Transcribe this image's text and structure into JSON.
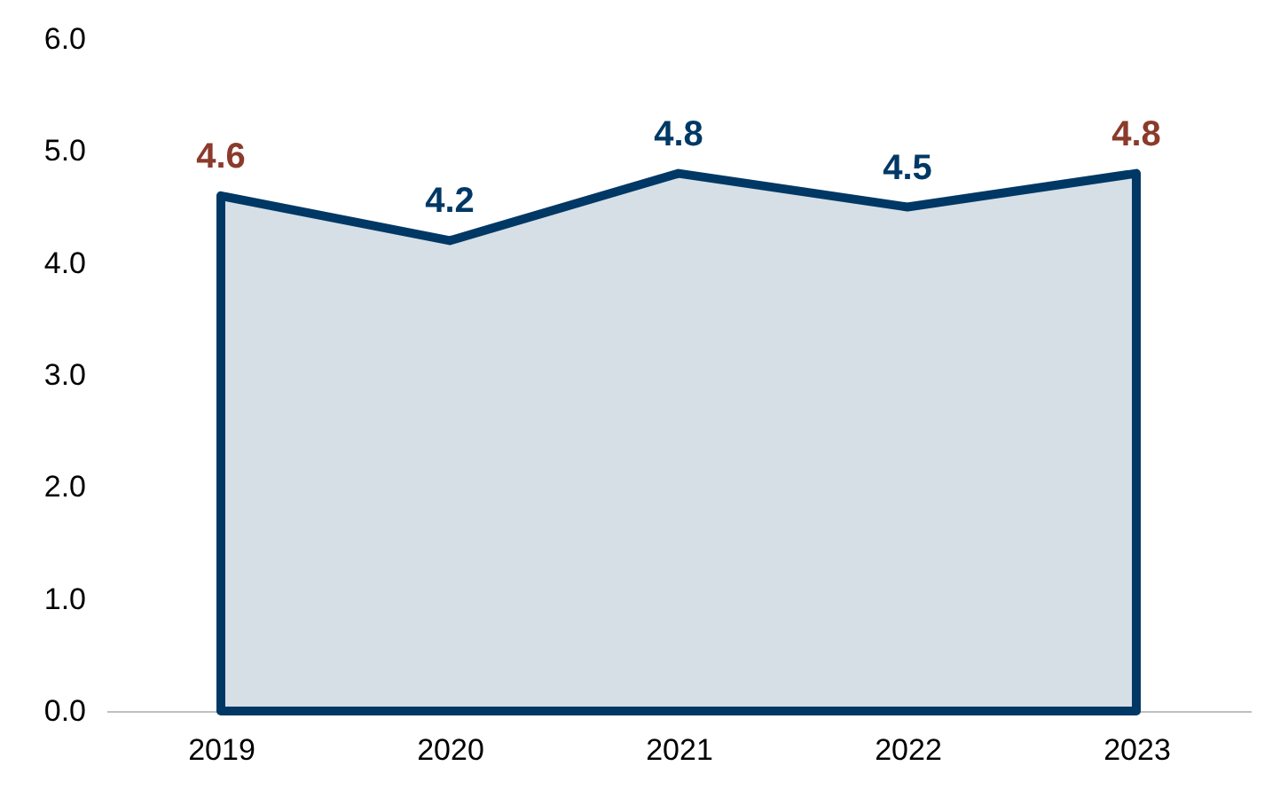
{
  "chart_data": {
    "type": "area",
    "categories": [
      "2019",
      "2020",
      "2021",
      "2022",
      "2023"
    ],
    "series": [
      {
        "color": "#003865",
        "values": [
          4.6,
          4.2,
          4.8,
          4.5,
          4.8
        ],
        "colors": [
          "#8b3a2b",
          "#003865",
          "#003865",
          "#003865",
          "#8b3a2b"
        ]
      }
    ],
    "ylim": [
      0,
      6
    ],
    "yticks": [
      {
        "value": 0,
        "label": "0.0"
      },
      {
        "value": 1,
        "label": "1.0"
      },
      {
        "value": 2,
        "label": "2.0"
      },
      {
        "value": 3,
        "label": "3.0"
      },
      {
        "value": 4,
        "label": "4.0"
      },
      {
        "value": 5,
        "label": "5.0"
      },
      {
        "value": 6,
        "label": "6.0"
      }
    ],
    "data_labels": true
  }
}
